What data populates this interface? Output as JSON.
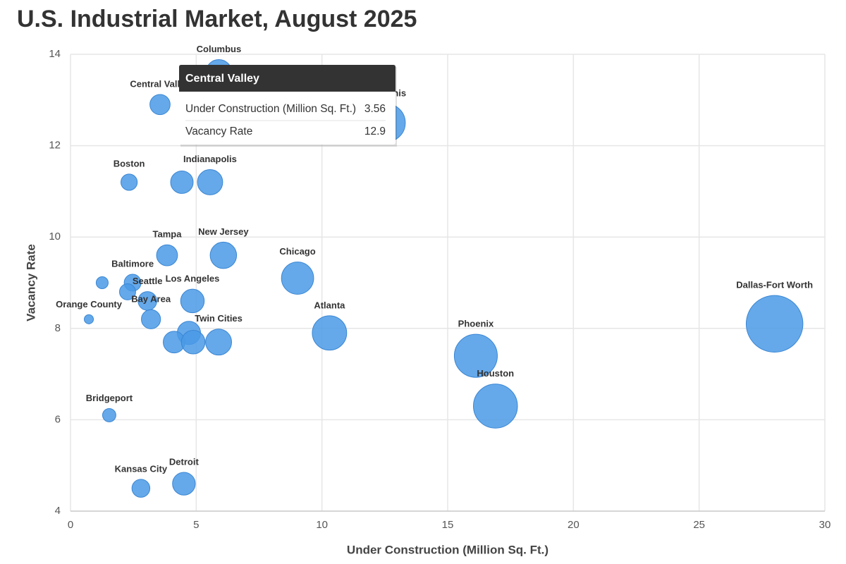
{
  "chart_data": {
    "type": "bubble",
    "title": "U.S. Industrial Market, August 2025",
    "x_label": "Under Construction (Million Sq. Ft.)",
    "y_label": "Vacancy Rate",
    "color": "#4a9ae6",
    "labels": [
      "Columbus",
      "Central Valley",
      "Memphis",
      "Boston",
      null,
      "Indianapolis",
      "Tampa",
      "New Jersey",
      "Chicago",
      null,
      "Baltimore",
      null,
      "Seattle",
      "Bay Area",
      "Los Angeles",
      "Orange County",
      null,
      null,
      null,
      "Twin Cities",
      "Atlanta",
      "Phoenix",
      "Houston",
      "Dallas-Fort Worth",
      "Bridgeport",
      "Kansas City",
      "Detroit"
    ],
    "x": [
      5.9,
      3.56,
      12.56,
      2.33,
      4.43,
      5.55,
      3.84,
      6.08,
      9.03,
      1.26,
      2.47,
      2.27,
      3.06,
      3.2,
      4.85,
      0.73,
      4.71,
      4.12,
      4.88,
      5.89,
      10.3,
      16.12,
      16.9,
      28.0,
      1.54,
      2.8,
      4.51
    ],
    "values": [
      13.6,
      12.9,
      12.5,
      11.2,
      11.2,
      11.2,
      9.6,
      9.6,
      9.1,
      9.0,
      9.0,
      8.8,
      8.6,
      8.2,
      8.6,
      8.2,
      7.9,
      7.7,
      7.7,
      7.7,
      7.9,
      7.4,
      6.3,
      8.1,
      6.1,
      4.5,
      4.6
    ],
    "xlim": [
      0,
      30
    ],
    "xticks": [
      0,
      5,
      10,
      15,
      20,
      25,
      30
    ],
    "ylim": [
      4,
      14
    ],
    "yticks": [
      4,
      6,
      8,
      10,
      12,
      14
    ],
    "grid": true,
    "tooltip_point": 1
  }
}
